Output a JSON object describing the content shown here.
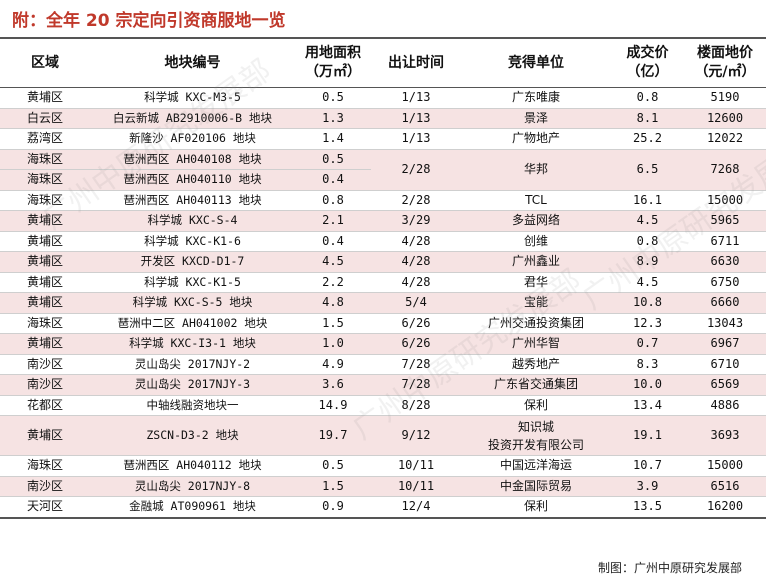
{
  "title": "附：全年 20 宗定向引资商服地一览",
  "headers": {
    "district": "区域",
    "plot": "地块编号",
    "area_line1": "用地面积",
    "area_line2": "（万㎡）",
    "date": "出让时间",
    "winner": "竞得单位",
    "price_line1": "成交价",
    "price_line2": "（亿）",
    "floor_line1": "楼面地价",
    "floor_line2": "（元/㎡）"
  },
  "rows": [
    {
      "district": "黄埔区",
      "plot": "科学城 KXC-M3-5",
      "area": "0.5",
      "date": "1/13",
      "winner": "广东唯康",
      "price": "0.8",
      "floor": "5190"
    },
    {
      "district": "白云区",
      "plot": "白云新城 AB2910006-B 地块",
      "area": "1.3",
      "date": "1/13",
      "winner": "景泽",
      "price": "8.1",
      "floor": "12600"
    },
    {
      "district": "荔湾区",
      "plot": "新隆沙 AF020106 地块",
      "area": "1.4",
      "date": "1/13",
      "winner": "广物地产",
      "price": "25.2",
      "floor": "12022"
    },
    {
      "district": "海珠区",
      "plot": "琶洲西区 AH040108 地块",
      "area": "0.5",
      "date": "2/28",
      "winner": "华邦",
      "price": "6.5",
      "floor": "7268"
    },
    {
      "district": "海珠区",
      "plot": "琶洲西区 AH040110 地块",
      "area": "0.4"
    },
    {
      "district": "海珠区",
      "plot": "琶洲西区 AH040113 地块",
      "area": "0.8",
      "date": "2/28",
      "winner": "TCL",
      "price": "16.1",
      "floor": "15000"
    },
    {
      "district": "黄埔区",
      "plot": "科学城 KXC-S-4",
      "area": "2.1",
      "date": "3/29",
      "winner": "多益网络",
      "price": "4.5",
      "floor": "5965"
    },
    {
      "district": "黄埔区",
      "plot": "科学城 KXC-K1-6",
      "area": "0.4",
      "date": "4/28",
      "winner": "创维",
      "price": "0.8",
      "floor": "6711"
    },
    {
      "district": "黄埔区",
      "plot": "开发区 KXCD-D1-7",
      "area": "4.5",
      "date": "4/28",
      "winner": "广州鑫业",
      "price": "8.9",
      "floor": "6630"
    },
    {
      "district": "黄埔区",
      "plot": "科学城 KXC-K1-5",
      "area": "2.2",
      "date": "4/28",
      "winner": "君华",
      "price": "4.5",
      "floor": "6750"
    },
    {
      "district": "黄埔区",
      "plot": "科学城 KXC-S-5 地块",
      "area": "4.8",
      "date": "5/4",
      "winner": "宝能",
      "price": "10.8",
      "floor": "6660"
    },
    {
      "district": "海珠区",
      "plot": "琶洲中二区 AH041002 地块",
      "area": "1.5",
      "date": "6/26",
      "winner": "广州交通投资集团",
      "price": "12.3",
      "floor": "13043"
    },
    {
      "district": "黄埔区",
      "plot": "科学城 KXC-I3-1 地块",
      "area": "1.0",
      "date": "6/26",
      "winner": "广州华智",
      "price": "0.7",
      "floor": "6967"
    },
    {
      "district": "南沙区",
      "plot": "灵山岛尖 2017NJY-2",
      "area": "4.9",
      "date": "7/28",
      "winner": "越秀地产",
      "price": "8.3",
      "floor": "6710"
    },
    {
      "district": "南沙区",
      "plot": "灵山岛尖 2017NJY-3",
      "area": "3.6",
      "date": "7/28",
      "winner": "广东省交通集团",
      "price": "10.0",
      "floor": "6569"
    },
    {
      "district": "花都区",
      "plot": "中轴线融资地块一",
      "area": "14.9",
      "date": "8/28",
      "winner": "保利",
      "price": "13.4",
      "floor": "4886"
    },
    {
      "district": "黄埔区",
      "plot": "ZSCN-D3-2 地块",
      "area": "19.7",
      "date": "9/12",
      "winner_line1": "知识城",
      "winner_line2": "投资开发有限公司",
      "price": "19.1",
      "floor": "3693"
    },
    {
      "district": "海珠区",
      "plot": "琶洲西区 AH040112 地块",
      "area": "0.5",
      "date": "10/11",
      "winner": "中国远洋海运",
      "price": "10.7",
      "floor": "15000"
    },
    {
      "district": "南沙区",
      "plot": "灵山岛尖 2017NJY-8",
      "area": "1.5",
      "date": "10/11",
      "winner": "中金国际贸易",
      "price": "3.9",
      "floor": "6516"
    },
    {
      "district": "天河区",
      "plot": "金融城 AT090961 地块",
      "area": "0.9",
      "date": "12/4",
      "winner": "保利",
      "price": "13.5",
      "floor": "16200"
    }
  ],
  "credit": "制图：广州中原研究发展部",
  "watermark": "广州中原研究发展部",
  "colors": {
    "title": "#c0392b",
    "alt_row": "#f6e3e3"
  }
}
